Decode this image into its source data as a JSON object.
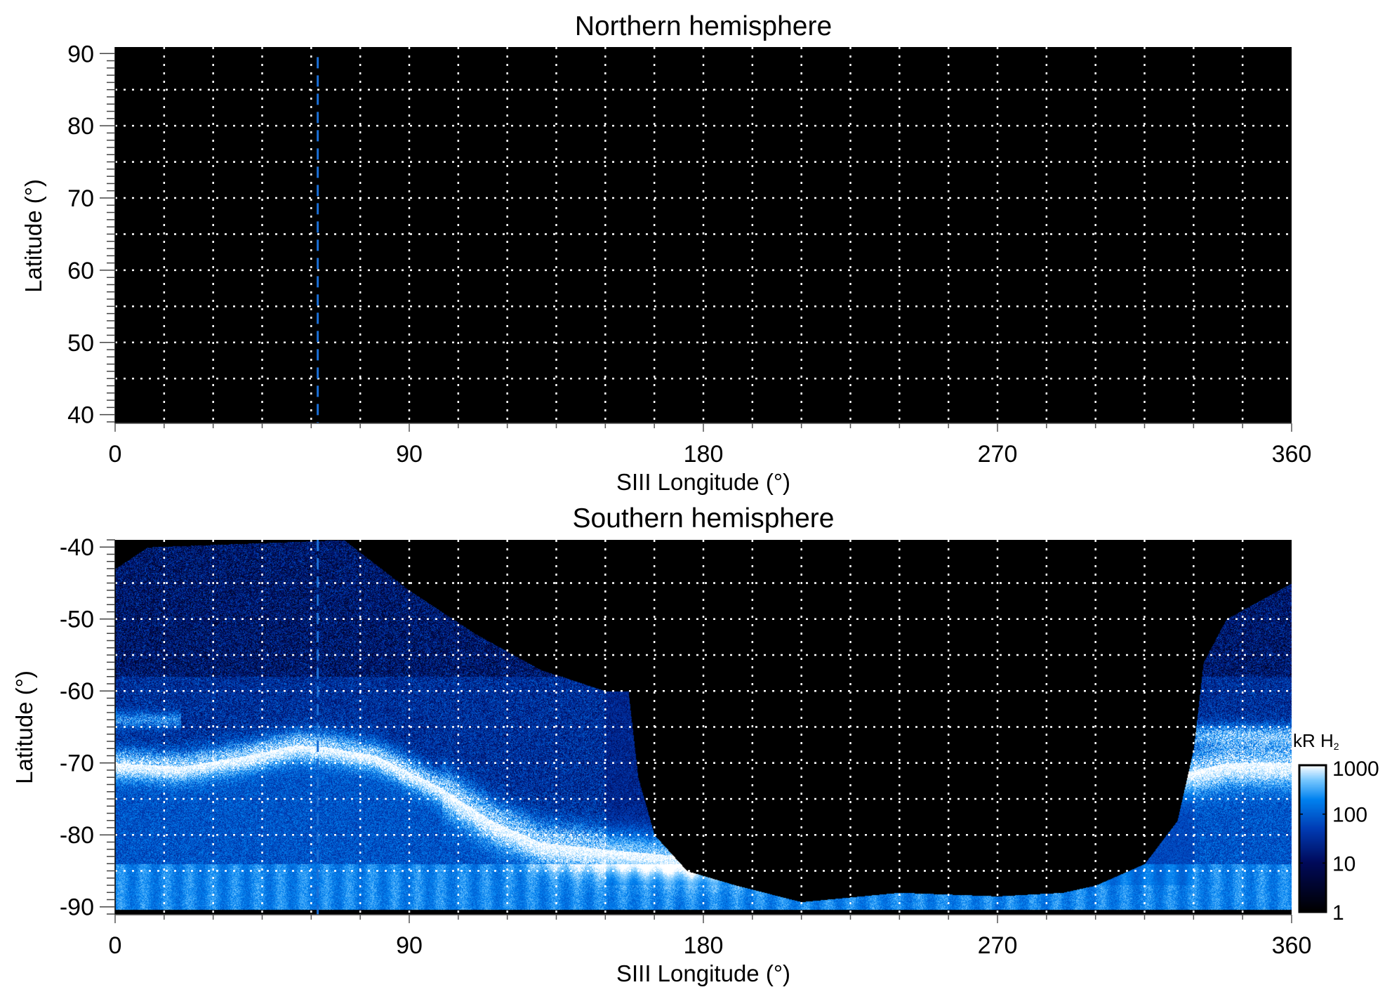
{
  "chart_data": [
    {
      "type": "heatmap",
      "title": "Northern hemisphere",
      "xlabel": "SIII Longitude (°)",
      "ylabel": "Latitude (°)",
      "xlim": [
        0,
        360
      ],
      "ylim": [
        38.8,
        90.9
      ],
      "xticks": [
        0,
        90,
        180,
        270,
        360
      ],
      "xtick_labels": [
        "0",
        "90",
        "180",
        "270",
        "360"
      ],
      "yticks": [
        40,
        50,
        60,
        70,
        80,
        90
      ],
      "ytick_labels": [
        "40",
        "50",
        "60",
        "70",
        "80",
        "90"
      ],
      "grid": {
        "on": true,
        "style": "dotted",
        "color": "#ffffff",
        "lon_step": 15,
        "lat_step": 5
      },
      "reference_line": {
        "longitude": 62,
        "style": "dashed",
        "color": "#1a6fd6"
      },
      "content": "no emission (all black)"
    },
    {
      "type": "heatmap",
      "title": "Southern hemisphere",
      "xlabel": "SIII Longitude (°)",
      "ylabel": "Latitude (°)",
      "xlim": [
        0,
        360
      ],
      "ylim": [
        -91.1,
        -39.0
      ],
      "xticks": [
        0,
        90,
        180,
        270,
        360
      ],
      "xtick_labels": [
        "0",
        "90",
        "180",
        "270",
        "360"
      ],
      "yticks": [
        -40,
        -50,
        -60,
        -70,
        -80,
        -90
      ],
      "ytick_labels": [
        "-40",
        "-50",
        "-60",
        "-70",
        "-80",
        "-90"
      ],
      "grid": {
        "on": true,
        "style": "dotted",
        "color": "#ffffff",
        "lon_step": 15,
        "lat_step": 5
      },
      "reference_line": {
        "longitude": 62,
        "style": "dashed",
        "color": "#1a6fd6"
      },
      "main_oval_latitude": {
        "lon": [
          0,
          40,
          60,
          80,
          100,
          120,
          140,
          160,
          330,
          360
        ],
        "lat": [
          -70,
          -69,
          -67.5,
          -69,
          -73.5,
          -79.5,
          -81.5,
          -82,
          -70,
          -70
        ]
      }
    }
  ],
  "colorbar": {
    "label": "kR H",
    "label_subscript": "2",
    "scale": "log",
    "range": [
      1,
      1000
    ],
    "tick_labels": [
      "1000",
      "100",
      "10",
      "1"
    ],
    "colors": [
      "#000000",
      "#000a5a",
      "#003cb4",
      "#0082f0",
      "#78c8ff",
      "#ffffff"
    ]
  }
}
